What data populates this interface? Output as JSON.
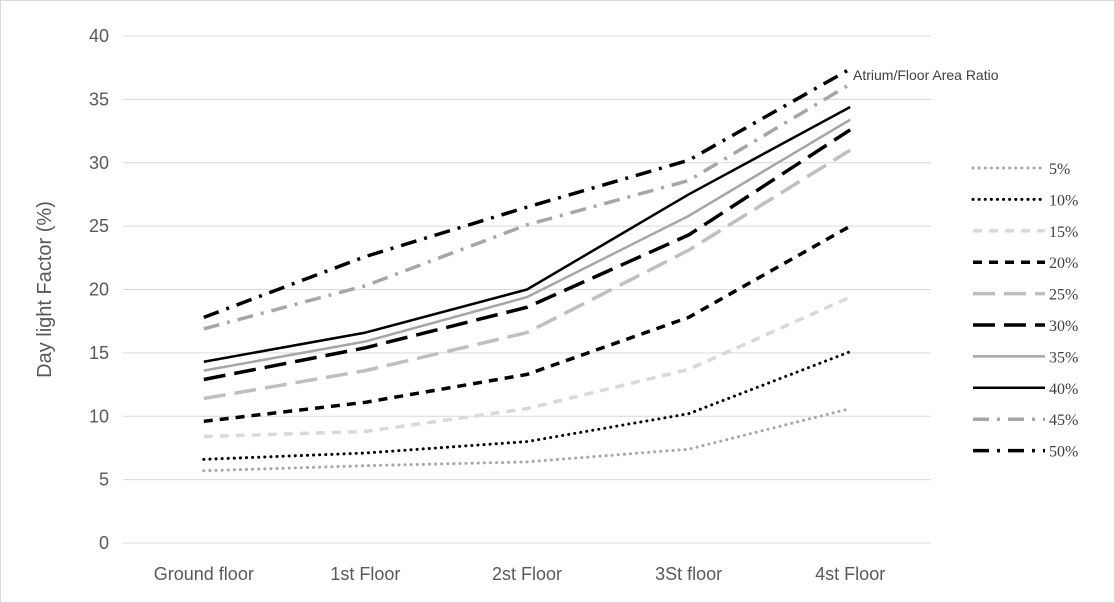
{
  "chart_data": {
    "type": "line",
    "xlabel": "",
    "ylabel": "Day light Factor (%)",
    "categories": [
      "Ground floor",
      "1st Floor",
      "2st Floor",
      "3St floor",
      "4st Floor"
    ],
    "ylim": [
      0,
      40
    ],
    "yticks": [
      0,
      5,
      10,
      15,
      20,
      25,
      30,
      35,
      40
    ],
    "grid": true,
    "legend_title": "Atrium/Floor Area Ratio",
    "legend_position": "right",
    "series": [
      {
        "name": "5%",
        "values": [
          5.7,
          6.1,
          6.4,
          7.4,
          10.6
        ],
        "color": "#a6a6a6",
        "dash": "round-dot"
      },
      {
        "name": "10%",
        "values": [
          6.6,
          7.1,
          8.0,
          10.2,
          15.1
        ],
        "color": "#000000",
        "dash": "round-dot"
      },
      {
        "name": "15%",
        "values": [
          8.4,
          8.8,
          10.6,
          13.7,
          19.4
        ],
        "color": "#d9d9d9",
        "dash": "dash"
      },
      {
        "name": "20%",
        "values": [
          9.6,
          11.1,
          13.3,
          17.8,
          25.0
        ],
        "color": "#000000",
        "dash": "dash"
      },
      {
        "name": "25%",
        "values": [
          11.4,
          13.6,
          16.6,
          23.1,
          31.0
        ],
        "color": "#bfbfbf",
        "dash": "long-dash"
      },
      {
        "name": "30%",
        "values": [
          12.9,
          15.4,
          18.6,
          24.3,
          32.6
        ],
        "color": "#000000",
        "dash": "long-dash"
      },
      {
        "name": "35%",
        "values": [
          13.6,
          15.9,
          19.4,
          25.8,
          33.4
        ],
        "color": "#a6a6a6",
        "dash": "solid"
      },
      {
        "name": "40%",
        "values": [
          14.3,
          16.6,
          20.0,
          27.5,
          34.4
        ],
        "color": "#000000",
        "dash": "solid"
      },
      {
        "name": "45%",
        "values": [
          16.9,
          20.3,
          25.1,
          28.6,
          36.2
        ],
        "color": "#a6a6a6",
        "dash": "dash-dot"
      },
      {
        "name": "50%",
        "values": [
          17.8,
          22.6,
          26.5,
          30.2,
          37.4
        ],
        "color": "#000000",
        "dash": "dash-dot"
      }
    ]
  }
}
